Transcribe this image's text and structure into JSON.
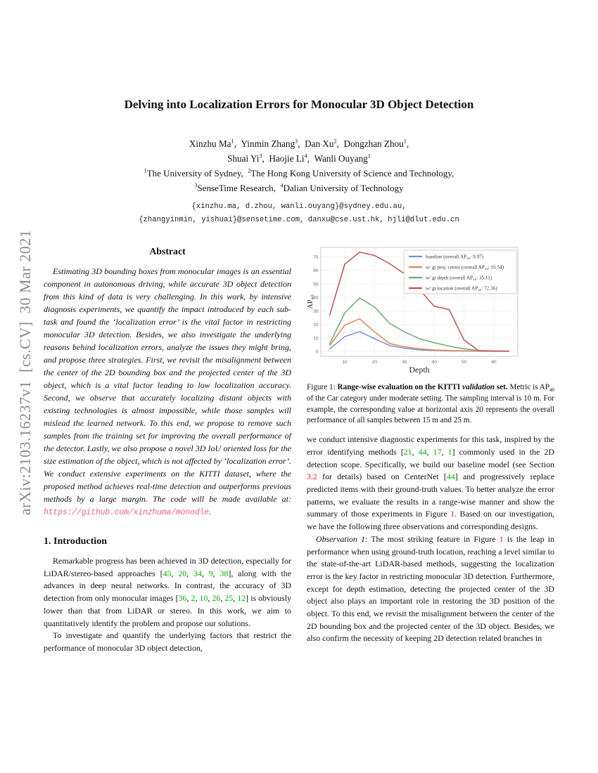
{
  "arxiv_label": "arXiv:2103.16237v1 [cs.CV] 30 Mar 2021",
  "title": "Delving into Localization Errors for Monocular 3D Object Detection",
  "authors": {
    "line1": [
      {
        "t": "Xinzhu Ma",
        "c": ""
      },
      {
        "t": "1",
        "c": "sup"
      },
      {
        "t": ", Yinmin Zhang",
        "c": ""
      },
      {
        "t": "3",
        "c": "sup"
      },
      {
        "t": ", Dan Xu",
        "c": ""
      },
      {
        "t": "2",
        "c": "sup"
      },
      {
        "t": ", Dongzhan Zhou",
        "c": ""
      },
      {
        "t": "1",
        "c": "sup"
      },
      {
        "t": ",",
        "c": ""
      }
    ],
    "line2": [
      {
        "t": "Shuai Yi",
        "c": ""
      },
      {
        "t": "3",
        "c": "sup"
      },
      {
        "t": ", Haojie Li",
        "c": ""
      },
      {
        "t": "4",
        "c": "sup"
      },
      {
        "t": ", Wanli Ouyang",
        "c": ""
      },
      {
        "t": "1",
        "c": "sup"
      }
    ],
    "affil1": [
      {
        "t": "1",
        "c": "sup"
      },
      {
        "t": "The University of Sydney, ",
        "c": ""
      },
      {
        "t": "2",
        "c": "sup"
      },
      {
        "t": "The Hong Kong University of Science and Technology,",
        "c": ""
      }
    ],
    "affil2": [
      {
        "t": "3",
        "c": "sup"
      },
      {
        "t": "SenseTime Research, ",
        "c": ""
      },
      {
        "t": "4",
        "c": "sup"
      },
      {
        "t": "Dalian University of Technology",
        "c": ""
      }
    ]
  },
  "emails": {
    "line1": "{xinzhu.ma, d.zhou, wanli.ouyang}@sydney.edu.au,",
    "line2": "{zhangyinmin, yishuai}@sensetime.com, danxu@cse.ust.hk, hjli@dlut.edu.cn"
  },
  "abstract": {
    "heading": "Abstract",
    "body": [
      {
        "t": "Estimating 3D bounding boxes from monocular images is an essential component in autonomous driving, while accurate 3D object detection from this kind of data is very challenging. In this work, by intensive diagnosis experiments, we quantify the impact introduced by each sub-task and found the ‘localization error’ is the vital factor in restricting monocular 3D detection. Besides, we also investigate the underlying reasons behind localization errors, analyze the issues they might bring, and propose three strategies. First, we revisit the misalignment between the center of the 2D bounding box and the projected center of the 3D object, which is a vital factor leading to low localization accuracy. Second, we observe that accurately localizing distant objects with existing technologies is almost impossible, while those samples will mislead the learned network. To this end, we propose to remove such samples from the training set for improving the overall performance of the detector. Lastly, we also propose a novel 3D IoU oriented loss for the size estimation of the object, which is not affected by ‘localization error’. We conduct extensive experiments on the KITTI dataset, where the proposed method achieves real-time detection and outperforms previous methods by a large margin. The code will be made available at: ",
        "c": ""
      },
      {
        "t": "https://github.com/xinzhuma/monodle",
        "c": "link"
      },
      {
        "t": ".",
        "c": ""
      }
    ]
  },
  "introduction": {
    "heading": "1. Introduction",
    "p1": [
      {
        "t": "Remarkable progress has been achieved in 3D detection, especially for LiDAR/stereo-based approaches [",
        "c": ""
      },
      {
        "t": "45",
        "c": "cite"
      },
      {
        "t": ", ",
        "c": ""
      },
      {
        "t": "20",
        "c": "cite"
      },
      {
        "t": ", ",
        "c": ""
      },
      {
        "t": "34",
        "c": "cite"
      },
      {
        "t": ", ",
        "c": ""
      },
      {
        "t": "9",
        "c": "cite"
      },
      {
        "t": ", ",
        "c": ""
      },
      {
        "t": "38",
        "c": "cite"
      },
      {
        "t": "], along with the advances in deep neural networks. In contrast, the accuracy of 3D detection from only monocular images [",
        "c": ""
      },
      {
        "t": "36",
        "c": "cite"
      },
      {
        "t": ", ",
        "c": ""
      },
      {
        "t": "2",
        "c": "cite"
      },
      {
        "t": ", ",
        "c": ""
      },
      {
        "t": "10",
        "c": "cite"
      },
      {
        "t": ", ",
        "c": ""
      },
      {
        "t": "26",
        "c": "cite"
      },
      {
        "t": ", ",
        "c": ""
      },
      {
        "t": "25",
        "c": "cite"
      },
      {
        "t": ", ",
        "c": ""
      },
      {
        "t": "12",
        "c": "cite"
      },
      {
        "t": "] is obviously lower than that from LiDAR or stereo. In this work, we aim to quantitatively identify the problem and propose our solutions.",
        "c": ""
      }
    ],
    "p2": [
      {
        "t": "To investigate and quantify the underlying factors that restrict the performance of monocular 3D object detection,",
        "c": ""
      }
    ]
  },
  "right_column": {
    "p1": [
      {
        "t": "we conduct intensive diagnostic experiments for this task, inspired by the error identifying methods [",
        "c": ""
      },
      {
        "t": "21",
        "c": "cite"
      },
      {
        "t": ", ",
        "c": ""
      },
      {
        "t": "44",
        "c": "cite"
      },
      {
        "t": ", ",
        "c": ""
      },
      {
        "t": "17",
        "c": "cite"
      },
      {
        "t": ", ",
        "c": ""
      },
      {
        "t": "1",
        "c": "cite"
      },
      {
        "t": "] commonly used in the 2D detection scope. Specifically, we build our baseline model (see Section ",
        "c": ""
      },
      {
        "t": "3.2",
        "c": "ref"
      },
      {
        "t": " for details) based on CenterNet [",
        "c": ""
      },
      {
        "t": "44",
        "c": "cite"
      },
      {
        "t": "] and progressively replace predicted items with their ground-truth values. To better analyze the error patterns, we evaluate the results in a range-wise manner and show the summary of those experiments in Figure ",
        "c": ""
      },
      {
        "t": "1",
        "c": "ref"
      },
      {
        "t": ". Based on our investigation, we have the following three observations and corresponding designs.",
        "c": ""
      }
    ],
    "p2": [
      {
        "t": "Observation 1",
        "c": "i"
      },
      {
        "t": ": The most striking feature in Figure ",
        "c": ""
      },
      {
        "t": "1",
        "c": "ref"
      },
      {
        "t": " is the leap in performance when using ground-truth location, reaching a level similar to the state-of-the-art LiDAR-based methods, suggesting the localization error is the key factor in restricting monocular 3D detection. Furthermore, except for depth estimation, detecting the projected center of the 3D object also plays an important role in restoring the 3D position of the object. To this end, we revisit the misalignment between the center of the 2D bounding box and the projected center of the 3D object. Besides, we also confirm the necessity of keeping 2D detection related branches in",
        "c": ""
      }
    ]
  },
  "figure1": {
    "caption": [
      {
        "t": "Figure 1: ",
        "c": ""
      },
      {
        "t": "Range-wise evaluation on the KITTI ",
        "c": "b"
      },
      {
        "t": "validation",
        "c": "bi"
      },
      {
        "t": " set.",
        "c": "b"
      },
      {
        "t": " Metric is AP",
        "c": ""
      },
      {
        "t": "40",
        "c": "sub"
      },
      {
        "t": " of the Car category under moderate setting. The sampling interval is 10 m. For example, the corresponding value at horizontal axis 20 represents the overall performance of all samples between 15 m and 25 m.",
        "c": ""
      }
    ]
  },
  "chart_data": {
    "type": "line",
    "title": "",
    "xlabel": "Depth",
    "ylabel": "AP₄₀",
    "x": [
      5,
      10,
      15,
      20,
      25,
      30,
      35,
      40,
      45,
      50,
      55,
      60,
      65
    ],
    "xlim": [
      2,
      68
    ],
    "ylim": [
      -3.5,
      77
    ],
    "xticks": [
      10,
      20,
      30,
      40,
      50,
      60
    ],
    "yticks": [
      0,
      10,
      20,
      30,
      40,
      50,
      60,
      70
    ],
    "grid": true,
    "legend_position": "upper right",
    "series": [
      {
        "name": "baseline (overall AP₄₀: 9.97)",
        "overall_ap40": 9.97,
        "color": "#7293cb",
        "values": [
          2,
          11,
          14.7,
          9.5,
          4.5,
          2.5,
          1.2,
          0.8,
          0.5,
          0.4,
          0.3,
          0.2,
          0.2
        ]
      },
      {
        "name": "w/ gt proj. center (overall AP₄₀: 16.54)",
        "overall_ap40": 16.54,
        "color": "#dd8452",
        "values": [
          4.5,
          19.5,
          24.2,
          14.5,
          6,
          3.5,
          2,
          1.2,
          0.8,
          0.5,
          0.4,
          0.3,
          0.3
        ]
      },
      {
        "name": "w/ gt depth (overall AP₄₀: 35.11)",
        "overall_ap40": 35.11,
        "color": "#6aab75",
        "values": [
          6,
          28.5,
          39.5,
          33,
          21,
          14.5,
          9.5,
          6.5,
          4,
          2,
          0.8,
          0.3,
          0.3
        ]
      },
      {
        "name": "w/ gt location (overall AP₄₀: 72.36)",
        "overall_ap40": 72.36,
        "color": "#c44e52",
        "values": [
          27,
          64.5,
          73.5,
          71,
          65,
          57.5,
          46,
          33.5,
          31,
          8.5,
          0.5,
          0.3,
          0.3
        ]
      }
    ]
  },
  "colors": {
    "citation_green": "#00b200",
    "reference_red": "#ee1c1c",
    "link_pink": "#ec5aa0",
    "watermark_gray": "#8a8a8a",
    "chart_border": "#c9c9c9",
    "grid_gray": "#dedede"
  }
}
